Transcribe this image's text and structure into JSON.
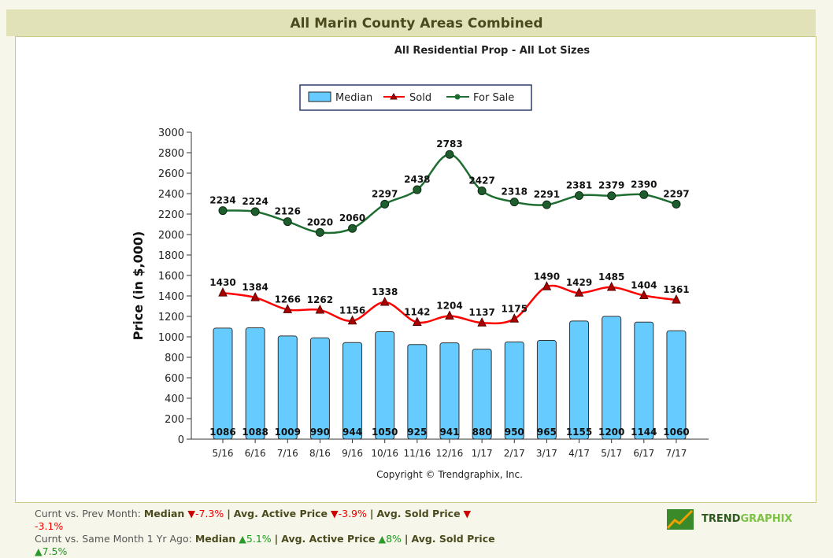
{
  "page": {
    "title": "All Marin County Areas Combined"
  },
  "chart_data": {
    "type": "bar+line",
    "title": "All Residential Prop - All Lot Sizes",
    "ylabel": "Price (in $,000)",
    "ylim": [
      0,
      3000
    ],
    "yticks": [
      0,
      200,
      400,
      600,
      800,
      1000,
      1200,
      1400,
      1600,
      1800,
      2000,
      2200,
      2400,
      2600,
      2800,
      3000
    ],
    "categories": [
      "5/16",
      "6/16",
      "7/16",
      "8/16",
      "9/16",
      "10/16",
      "11/16",
      "12/16",
      "1/17",
      "2/17",
      "3/17",
      "4/17",
      "5/17",
      "6/17",
      "7/17"
    ],
    "series": [
      {
        "name": "Median",
        "type": "bar",
        "color": "#66ccff",
        "values": [
          1086,
          1088,
          1009,
          990,
          944,
          1050,
          925,
          941,
          880,
          950,
          965,
          1155,
          1200,
          1144,
          1060
        ]
      },
      {
        "name": "Sold",
        "type": "line",
        "color": "#ff0000",
        "marker": "triangle",
        "values": [
          1430,
          1384,
          1266,
          1262,
          1156,
          1338,
          1142,
          1204,
          1137,
          1175,
          1490,
          1429,
          1485,
          1404,
          1361
        ]
      },
      {
        "name": "For Sale",
        "type": "line",
        "color": "#1e6e32",
        "marker": "circle",
        "values": [
          2234,
          2224,
          2126,
          2020,
          2060,
          2297,
          2438,
          2783,
          2427,
          2318,
          2291,
          2381,
          2379,
          2390,
          2297
        ]
      }
    ],
    "legend": "top-center",
    "grid": false,
    "copyright": "Copyright © Trendgraphix, Inc."
  },
  "footer": {
    "line1_label": "Curnt vs. Prev Month:",
    "median": "Median",
    "median_prev": "-7.3%",
    "active": "Avg. Active Price",
    "active_prev": "-3.9%",
    "sold": "Avg. Sold Price",
    "sold_prev": "-3.1%",
    "line2_label": "Curnt vs. Same Month 1 Yr Ago:",
    "median_yr": "5.1%",
    "active_yr": "8%",
    "sold_yr": "7.5%",
    "sep": "|"
  },
  "logo": {
    "a": "TREND",
    "b": "GRAPHIX"
  }
}
